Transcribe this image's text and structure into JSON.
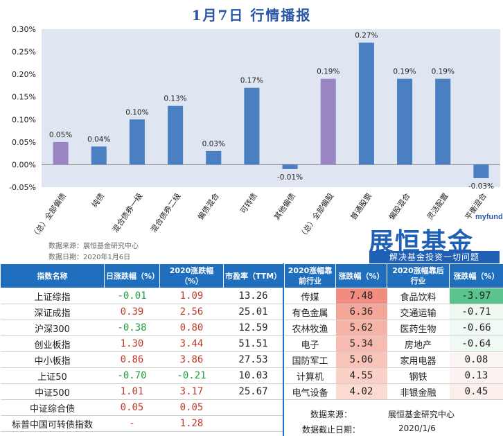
{
  "title": "1月7日  行情播报",
  "chart_data": {
    "type": "bar",
    "categories": [
      "（总）全部偏债",
      "纯债",
      "混合债券一级",
      "混合债券二级",
      "偏债混合",
      "可转债",
      "其他偏债",
      "（总）全部偏股",
      "普通股票",
      "偏股混合",
      "灵活配置",
      "平衡混合"
    ],
    "values": [
      0.05,
      0.04,
      0.1,
      0.13,
      0.03,
      0.17,
      -0.01,
      0.19,
      0.27,
      0.19,
      0.19,
      -0.03
    ],
    "data_labels": [
      "0.05%",
      "0.04%",
      "0.10%",
      "0.13%",
      "0.03%",
      "0.17%",
      "-0.01%",
      "0.19%",
      "0.27%",
      "0.19%",
      "0.19%",
      "-0.03%"
    ],
    "highlight": [
      true,
      false,
      false,
      false,
      false,
      false,
      false,
      true,
      false,
      false,
      false,
      false
    ],
    "ylim": [
      -0.05,
      0.3
    ],
    "yticks": [
      "-0.05%",
      "0.00%",
      "0.05%",
      "0.10%",
      "0.15%",
      "0.20%",
      "0.25%",
      "0.30%"
    ],
    "ytick_values": [
      -0.05,
      0.0,
      0.05,
      0.1,
      0.15,
      0.2,
      0.25,
      0.3
    ],
    "colors": {
      "bar": "#4a7fc1",
      "highlight": "#9b86c4",
      "plot_bg": "#dfe6f1"
    },
    "grid": false,
    "xlabel": "",
    "ylabel": ""
  },
  "chart_source": {
    "line1": "数据来源：展恒基金研究中心",
    "line2": "数据日期：2020年1月6日"
  },
  "logo": {
    "en": "myfund",
    "cn": "展恒基金",
    "slogan": "解决基金投资一切问题"
  },
  "left_table": {
    "headers": [
      "指数名称",
      "日涨跌幅（%）",
      "2020涨跌幅（%）",
      "市盈率（TTM）"
    ],
    "rows": [
      {
        "name": "上证综指",
        "day": "-0.01",
        "ytd": "1.09",
        "pe": "13.26",
        "day_dir": "down",
        "ytd_dir": "up"
      },
      {
        "name": "深证成指",
        "day": "0.39",
        "ytd": "2.56",
        "pe": "25.01",
        "day_dir": "up",
        "ytd_dir": "up"
      },
      {
        "name": "沪深300",
        "day": "-0.38",
        "ytd": "0.80",
        "pe": "12.59",
        "day_dir": "down",
        "ytd_dir": "up"
      },
      {
        "name": "创业板指",
        "day": "1.30",
        "ytd": "3.44",
        "pe": "51.51",
        "day_dir": "up",
        "ytd_dir": "up"
      },
      {
        "name": "中小板指",
        "day": "0.86",
        "ytd": "3.86",
        "pe": "27.53",
        "day_dir": "up",
        "ytd_dir": "up"
      },
      {
        "name": "上证50",
        "day": "-0.70",
        "ytd": "-0.21",
        "pe": "10.03",
        "day_dir": "down",
        "ytd_dir": "down"
      },
      {
        "name": "中证500",
        "day": "1.01",
        "ytd": "3.17",
        "pe": "25.67",
        "day_dir": "up",
        "ytd_dir": "up"
      },
      {
        "name": "中证综合债",
        "day": "0.05",
        "ytd": "0.05",
        "pe": "",
        "day_dir": "up",
        "ytd_dir": "up"
      },
      {
        "name": "标普中国可转债指数",
        "day": "-",
        "ytd": "1.28",
        "pe": "",
        "day_dir": "up",
        "ytd_dir": "up"
      }
    ]
  },
  "right_table": {
    "headers": [
      "2020涨幅靠前行业",
      "涨跌幅（%）",
      "2020涨幅靠后行业",
      "涨跌幅（%）"
    ],
    "rows": [
      {
        "top": "传媒",
        "top_val": "7.48",
        "top_bg": "#f08c80",
        "bot": "食品饮料",
        "bot_val": "-3.97",
        "bot_bg": "#5cc28e"
      },
      {
        "top": "有色金属",
        "top_val": "6.36",
        "top_bg": "#f4a699",
        "bot": "交通运输",
        "bot_val": "-0.71",
        "bot_bg": "#eef8f1"
      },
      {
        "top": "农林牧渔",
        "top_val": "5.62",
        "top_bg": "#f6b4a8",
        "bot": "医药生物",
        "bot_val": "-0.66",
        "bot_bg": "#f0f9f3"
      },
      {
        "top": "电子",
        "top_val": "5.34",
        "top_bg": "#f7bbb0",
        "bot": "房地产",
        "bot_val": "-0.64",
        "bot_bg": "#f1f9f4"
      },
      {
        "top": "国防军工",
        "top_val": "5.06",
        "top_bg": "#f8c3b8",
        "bot": "家用电器",
        "bot_val": "0.08",
        "bot_bg": "#fbf5f3"
      },
      {
        "top": "计算机",
        "top_val": "4.55",
        "top_bg": "#fad0c6",
        "bot": "钢铁",
        "bot_val": "0.13",
        "bot_bg": "#fbf3f1"
      },
      {
        "top": "电气设备",
        "top_val": "4.02",
        "top_bg": "#fbdad2",
        "bot": "非银金融",
        "bot_val": "0.45",
        "bot_bg": "#fbefec"
      }
    ]
  },
  "footer": {
    "source_label": "数据来源：",
    "source_value": "展恒基金研究中心",
    "date_label": "数据截止日期：",
    "date_value": "2020/1/6"
  }
}
